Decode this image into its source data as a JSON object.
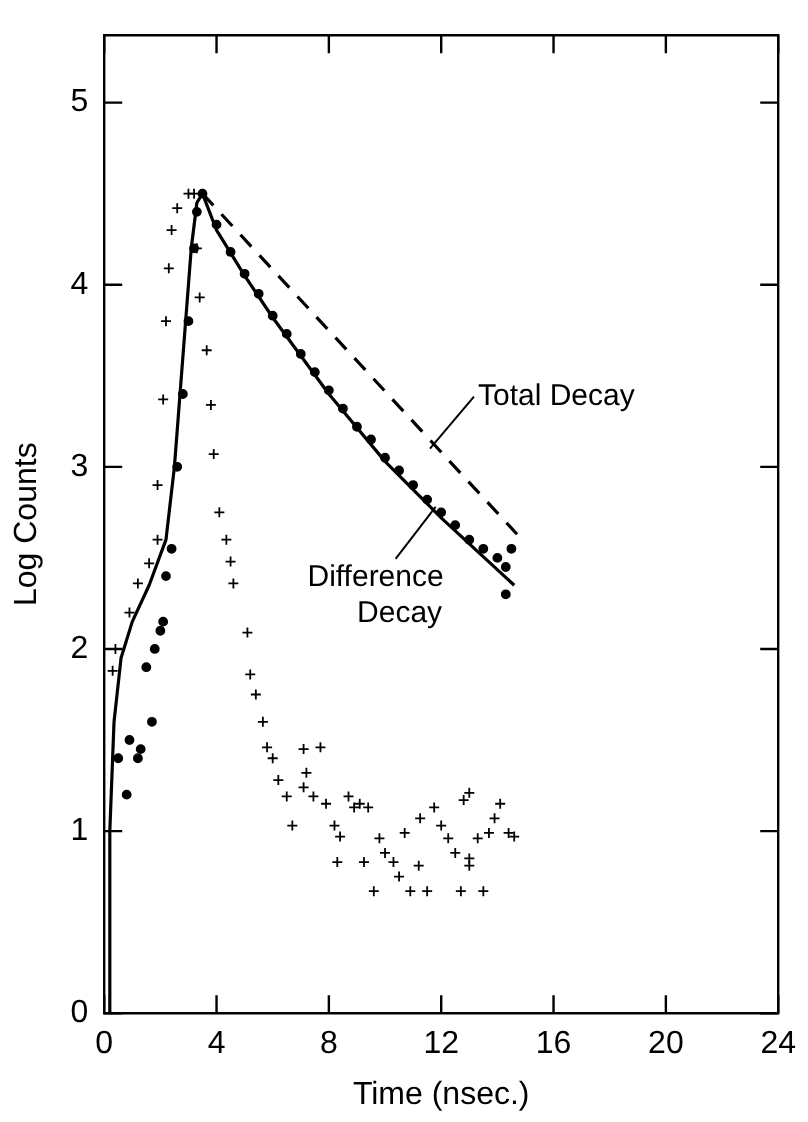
{
  "chart_data": {
    "type": "scatter",
    "xlabel": "Time (nsec.)",
    "ylabel": "Log Counts",
    "xlim": [
      0,
      24
    ],
    "ylim": [
      0,
      5.37
    ],
    "xticks": [
      0,
      4,
      8,
      12,
      16,
      20,
      24
    ],
    "yticks": [
      0,
      1,
      2,
      3,
      4,
      5
    ],
    "grid": false,
    "legend": false,
    "annotations": [
      {
        "text": "Total Decay",
        "x": 11.6,
        "y": 3.1
      },
      {
        "text": "Difference Decay",
        "x": 11.8,
        "y": 2.78
      }
    ],
    "series": [
      {
        "type": "scatter",
        "marker": "cross",
        "color": "#000000",
        "x": [
          0.3,
          0.4,
          0.9,
          1.2,
          1.6,
          1.9,
          1.9,
          2.1,
          2.2,
          2.3,
          2.4,
          2.6,
          3.0,
          3.2,
          3.3,
          3.4,
          3.65,
          3.8,
          3.9,
          4.1,
          4.35,
          4.5,
          4.6,
          5.1,
          5.2,
          5.4,
          5.65,
          5.8,
          6.0,
          6.2,
          6.5,
          6.7,
          7.1,
          7.2,
          7.1,
          7.7,
          7.45,
          7.9,
          8.2,
          8.3,
          8.4,
          8.7,
          8.9,
          9.1,
          9.4,
          9.25,
          9.6,
          9.8,
          10.0,
          10.3,
          10.5,
          10.7,
          10.9,
          11.2,
          11.25,
          11.5,
          11.75,
          12.0,
          12.25,
          12.5,
          12.7,
          12.8,
          13.0,
          13.0,
          13.0,
          13.3,
          13.5,
          13.7,
          13.9,
          14.1,
          14.4,
          14.6
        ],
        "values": [
          1.88,
          2.0,
          2.2,
          2.36,
          2.47,
          2.6,
          2.9,
          3.37,
          3.8,
          4.09,
          4.3,
          4.42,
          4.5,
          4.5,
          4.2,
          3.93,
          3.64,
          3.34,
          3.07,
          2.75,
          2.6,
          2.48,
          2.36,
          2.09,
          1.86,
          1.75,
          1.6,
          1.46,
          1.4,
          1.28,
          1.19,
          1.03,
          1.24,
          1.32,
          1.45,
          1.46,
          1.19,
          1.15,
          1.03,
          0.83,
          0.97,
          1.19,
          1.13,
          1.15,
          1.13,
          0.83,
          0.67,
          0.96,
          0.88,
          0.83,
          0.75,
          0.99,
          0.67,
          0.81,
          1.07,
          0.67,
          1.13,
          1.03,
          0.96,
          0.88,
          0.67,
          1.17,
          0.85,
          1.21,
          0.81,
          0.96,
          0.67,
          0.99,
          1.07,
          1.15,
          0.99,
          0.97
        ]
      },
      {
        "type": "scatter",
        "marker": "circle",
        "color": "#000000",
        "x": [
          0.5,
          0.8,
          0.9,
          1.2,
          1.3,
          1.5,
          1.7,
          1.8,
          2.0,
          2.1,
          2.2,
          2.4,
          2.6,
          2.8,
          3.0,
          3.2,
          3.3,
          3.5,
          4.0,
          4.5,
          5.0,
          5.5,
          6.0,
          6.5,
          7.0,
          7.5,
          8.0,
          8.5,
          9.0,
          9.5,
          10.0,
          10.5,
          11.0,
          11.5,
          12.0,
          12.5,
          13.0,
          13.5,
          14.0,
          14.3,
          14.5,
          14.3
        ],
        "values": [
          1.4,
          1.2,
          1.5,
          1.4,
          1.45,
          1.9,
          1.6,
          2.0,
          2.1,
          2.15,
          2.4,
          2.55,
          3.0,
          3.4,
          3.8,
          4.2,
          4.4,
          4.5,
          4.33,
          4.18,
          4.06,
          3.95,
          3.83,
          3.73,
          3.62,
          3.52,
          3.42,
          3.32,
          3.22,
          3.15,
          3.05,
          2.98,
          2.9,
          2.82,
          2.75,
          2.68,
          2.6,
          2.55,
          2.5,
          2.45,
          2.55,
          2.3
        ]
      },
      {
        "type": "line",
        "line_style": "solid",
        "color": "#000000",
        "x": [
          0.15,
          0.2,
          0.35,
          0.6,
          1.0,
          1.6,
          2.2,
          2.5,
          2.7,
          2.9,
          3.1,
          3.3,
          3.5,
          4.0,
          5.0,
          6.0,
          8.0,
          10.0,
          12.0,
          14.6
        ],
        "values": [
          0,
          1.0,
          1.6,
          1.95,
          2.15,
          2.35,
          2.6,
          3.0,
          3.4,
          3.8,
          4.2,
          4.45,
          4.5,
          4.3,
          4.05,
          3.82,
          3.4,
          3.03,
          2.72,
          2.35
        ]
      },
      {
        "type": "line",
        "line_style": "dashed",
        "color": "#000000",
        "x": [
          3.5,
          14.7
        ],
        "values": [
          4.5,
          2.63
        ]
      }
    ]
  }
}
